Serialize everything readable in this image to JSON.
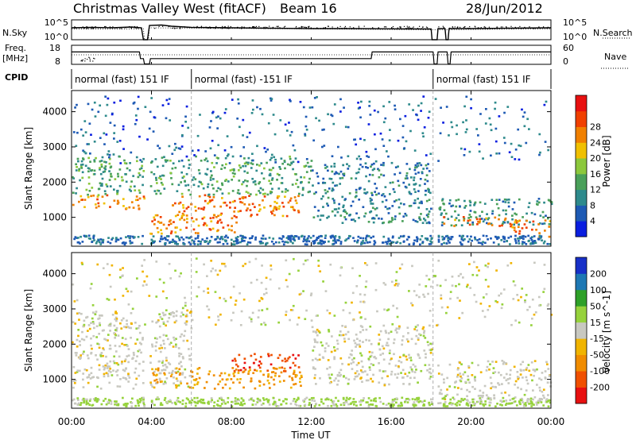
{
  "header": {
    "title": "Christmas Valley West (fitACF)",
    "beam": "Beam 16",
    "date": "28/Jun/2012"
  },
  "strip_labels": {
    "nsky": "N.Sky",
    "nsearch": "N.Search",
    "freq_line1": "Freq.",
    "freq_line2": "[MHz]",
    "nave": "Nave",
    "cpid": "CPID"
  },
  "strip_ticks": {
    "noise_top": "10^5",
    "noise_bottom": "10^0",
    "freq_top": "18",
    "freq_bottom": "8",
    "nave_top": "60",
    "nave_bottom": "0"
  },
  "cpid_segments": [
    {
      "label": "normal (fast) 151 IF",
      "start": 0.0,
      "end": 6.0
    },
    {
      "label": "normal (fast) -151 IF",
      "start": 6.0,
      "end": 18.1
    },
    {
      "label": "normal (fast) 151 IF",
      "start": 18.1,
      "end": 24.0
    }
  ],
  "noise_series": {
    "nsky": [
      [
        0.0,
        0.6
      ],
      [
        1.0,
        0.62
      ],
      [
        2.0,
        0.6
      ],
      [
        3.0,
        0.64
      ],
      [
        3.5,
        0.6
      ],
      [
        3.6,
        0.0
      ],
      [
        3.8,
        0.0
      ],
      [
        3.9,
        0.72
      ],
      [
        4.5,
        0.74
      ],
      [
        5.0,
        0.68
      ],
      [
        6.0,
        0.62
      ],
      [
        8.0,
        0.6
      ],
      [
        10.0,
        0.58
      ],
      [
        12.0,
        0.56
      ],
      [
        14.0,
        0.56
      ],
      [
        16.0,
        0.55
      ],
      [
        18.0,
        0.54
      ],
      [
        18.05,
        0.0
      ],
      [
        18.3,
        0.0
      ],
      [
        18.35,
        0.56
      ],
      [
        18.7,
        0.56
      ],
      [
        18.75,
        0.0
      ],
      [
        18.85,
        0.0
      ],
      [
        18.9,
        0.56
      ],
      [
        20.0,
        0.56
      ],
      [
        22.0,
        0.58
      ],
      [
        24.0,
        0.6
      ]
    ],
    "nsearch": [
      [
        0.0,
        0.55
      ],
      [
        3.6,
        0.55
      ],
      [
        3.65,
        0.0
      ],
      [
        3.85,
        0.0
      ],
      [
        3.9,
        0.6
      ],
      [
        18.0,
        0.5
      ],
      [
        24.0,
        0.55
      ]
    ]
  },
  "freq_series": [
    [
      0.0,
      14.5
    ],
    [
      3.4,
      14.5
    ],
    [
      3.45,
      11.0
    ],
    [
      3.6,
      11.0
    ],
    [
      3.65,
      8.2
    ],
    [
      3.9,
      8.2
    ],
    [
      3.95,
      11.0
    ],
    [
      15.0,
      11.0
    ],
    [
      15.05,
      14.5
    ],
    [
      18.1,
      14.5
    ],
    [
      18.15,
      8.2
    ],
    [
      18.3,
      8.2
    ],
    [
      18.35,
      14.5
    ],
    [
      18.8,
      14.5
    ],
    [
      18.85,
      8.2
    ],
    [
      18.95,
      8.2
    ],
    [
      19.0,
      14.5
    ],
    [
      24.0,
      14.5
    ]
  ],
  "nave_series": [
    [
      0.0,
      30
    ],
    [
      24.0,
      30
    ]
  ],
  "chart_data": [
    {
      "type": "heatmap",
      "title": "Power",
      "ylabel": "Slant Range [km]",
      "xlabel": "Time UT",
      "xlim": [
        0,
        24
      ],
      "ylim": [
        180,
        4600
      ],
      "x_ticks": [
        "00:00",
        "04:00",
        "08:00",
        "12:00",
        "16:00",
        "20:00",
        "00:00"
      ],
      "y_ticks": [
        1000,
        2000,
        3000,
        4000
      ],
      "colorbar": {
        "label": "Power [dB]",
        "ticks": [
          "4",
          "8",
          "12",
          "16",
          "20",
          "24",
          "28"
        ],
        "colors": [
          "#0a1ee0",
          "#1e5ab4",
          "#2e8a8c",
          "#4aa05a",
          "#8cc83c",
          "#f0c000",
          "#f08000",
          "#f04000",
          "#e81010"
        ]
      },
      "features": [
        {
          "t_start": 0.0,
          "t_end": 3.6,
          "range_min": 1200,
          "range_max": 1600,
          "value": 25
        },
        {
          "t_start": 3.9,
          "t_end": 8.5,
          "range_min": 500,
          "range_max": 1100,
          "value": 27
        },
        {
          "t_start": 5.0,
          "t_end": 11.5,
          "range_min": 1000,
          "range_max": 1600,
          "value": 27
        },
        {
          "t_start": 0.0,
          "t_end": 12.0,
          "range_min": 1600,
          "range_max": 2700,
          "value": 13
        },
        {
          "t_start": 12.0,
          "t_end": 18.0,
          "range_min": 800,
          "range_max": 2500,
          "value": 9
        },
        {
          "t_start": 18.2,
          "t_end": 24.0,
          "range_min": 700,
          "range_max": 1500,
          "value": 11
        },
        {
          "t_start": 18.5,
          "t_end": 22.0,
          "range_min": 700,
          "range_max": 1000,
          "value": 27
        },
        {
          "t_start": 22.0,
          "t_end": 24.0,
          "range_min": 400,
          "range_max": 900,
          "value": 27
        }
      ]
    },
    {
      "type": "heatmap",
      "title": "Velocity",
      "ylabel": "Slant Range [km]",
      "xlabel": "Time UT",
      "xlim": [
        0,
        24
      ],
      "ylim": [
        180,
        4600
      ],
      "x_ticks": [
        "00:00",
        "04:00",
        "08:00",
        "12:00",
        "16:00",
        "20:00",
        "00:00"
      ],
      "y_ticks": [
        1000,
        2000,
        3000,
        4000
      ],
      "colorbar": {
        "label": "Velocity [m s^-1]",
        "ticks": [
          "200",
          "100",
          "50",
          "15",
          "-15",
          "-50",
          "-100",
          "-200"
        ],
        "colors": [
          "#1830c8",
          "#1e78b4",
          "#2ea028",
          "#96d23c",
          "#c8c8c0",
          "#f0b400",
          "#f08c00",
          "#f05000",
          "#e81010"
        ]
      },
      "features": [
        {
          "t_start": 0.0,
          "t_end": 6.0,
          "range_min": 700,
          "range_max": 2900,
          "value": 0
        },
        {
          "t_start": 3.9,
          "t_end": 11.5,
          "range_min": 700,
          "range_max": 1300,
          "value": -60
        },
        {
          "t_start": 8.0,
          "t_end": 11.5,
          "range_min": 1200,
          "range_max": 1700,
          "value": -180
        },
        {
          "t_start": 12.0,
          "t_end": 18.0,
          "range_min": 800,
          "range_max": 2500,
          "value": 0
        },
        {
          "t_start": 18.2,
          "t_end": 24.0,
          "range_min": 300,
          "range_max": 1500,
          "value": 0
        }
      ]
    }
  ]
}
